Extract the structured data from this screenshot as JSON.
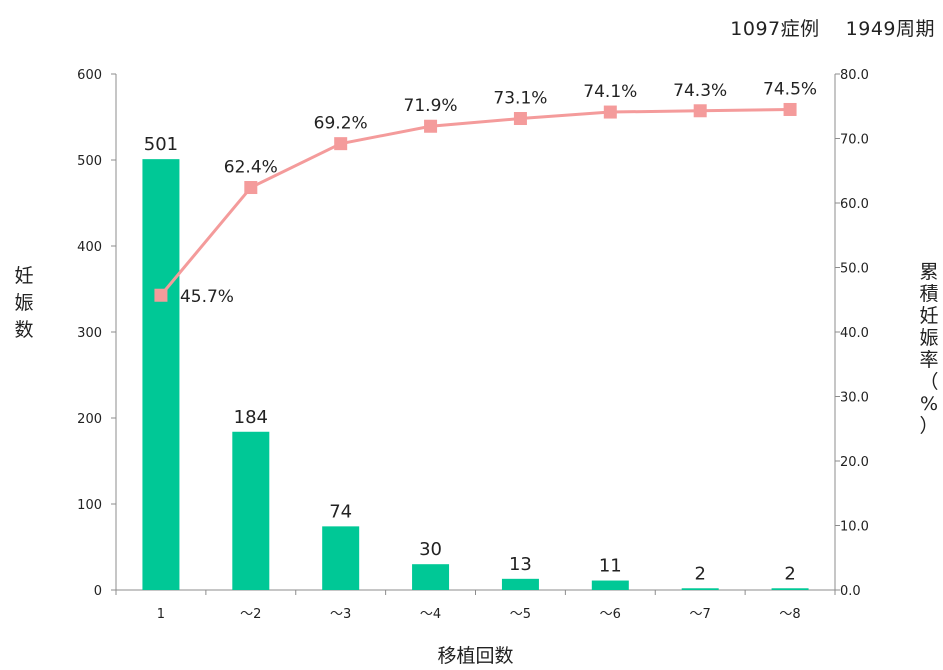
{
  "header": {
    "cases": "1097症例",
    "cycles": "1949周期"
  },
  "chart_data": {
    "type": "bar",
    "categories": [
      "1",
      "～2",
      "～3",
      "～4",
      "～5",
      "～6",
      "～7",
      "～8"
    ],
    "xlabel": "移植回数",
    "series": [
      {
        "type": "bar",
        "axis": "left",
        "values": [
          501,
          184,
          74,
          30,
          13,
          11,
          2,
          2
        ],
        "value_labels": [
          "501",
          "184",
          "74",
          "30",
          "13",
          "11",
          "2",
          "2"
        ],
        "color": "#00c896"
      },
      {
        "type": "line",
        "axis": "right",
        "values": [
          45.7,
          62.4,
          69.2,
          71.9,
          73.1,
          74.1,
          74.3,
          74.5
        ],
        "value_labels": [
          "45.7%",
          "62.4%",
          "69.2%",
          "71.9%",
          "73.1%",
          "74.1%",
          "74.3%",
          "74.5%"
        ],
        "color": "#f49b9b",
        "marker": "square"
      }
    ],
    "y_left": {
      "label": "妊娠数",
      "ylim": [
        0,
        600
      ],
      "ticks": [
        0,
        100,
        200,
        300,
        400,
        500,
        600
      ],
      "tick_labels": [
        "0",
        "100",
        "200",
        "300",
        "400",
        "500",
        "600"
      ]
    },
    "y_right": {
      "label": "累積妊娠率（%）",
      "ylim": [
        0,
        80
      ],
      "ticks": [
        0,
        10,
        20,
        30,
        40,
        50,
        60,
        70,
        80
      ],
      "tick_labels": [
        "0.0",
        "10.0",
        "20.0",
        "30.0",
        "40.0",
        "50.0",
        "60.0",
        "70.0",
        "80.0"
      ]
    },
    "grid": false,
    "legend": "none"
  }
}
